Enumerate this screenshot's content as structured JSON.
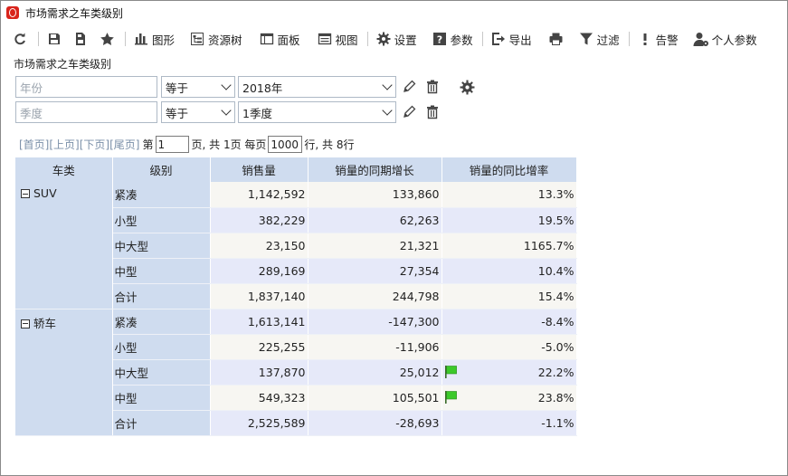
{
  "window": {
    "title": "市场需求之车类级别"
  },
  "toolbar": {
    "chart": "图形",
    "resource_tree": "资源树",
    "panel": "面板",
    "view": "视图",
    "settings": "设置",
    "params": "参数",
    "export": "导出",
    "filter": "过滤",
    "alert": "告警",
    "personal_params": "个人参数"
  },
  "report": {
    "title": "市场需求之车类级别"
  },
  "filters": [
    {
      "field_placeholder": "年份",
      "operator": "等于",
      "value": "2018年"
    },
    {
      "field_placeholder": "季度",
      "operator": "等于",
      "value": "1季度"
    }
  ],
  "pager": {
    "first": "[首页]",
    "prev": "[上页]",
    "next": "[下页]",
    "last": "[尾页]",
    "page_prefix": "第",
    "page": "1",
    "page_suffix": "页, 共 1页 每页",
    "per_page": "1000",
    "total_text": "行, 共 8行"
  },
  "table": {
    "headers": [
      "车类",
      "级别",
      "销售量",
      "销量的同期增长",
      "销量的同比增率"
    ],
    "groups": [
      {
        "category": "SUV",
        "rows": [
          {
            "level": "紧凑",
            "sales": "1,142,592",
            "growth": "133,860",
            "rate": "13.3%",
            "flag": false
          },
          {
            "level": "小型",
            "sales": "382,229",
            "growth": "62,263",
            "rate": "19.5%",
            "flag": false
          },
          {
            "level": "中大型",
            "sales": "23,150",
            "growth": "21,321",
            "rate": "1165.7%",
            "flag": false
          },
          {
            "level": "中型",
            "sales": "289,169",
            "growth": "27,354",
            "rate": "10.4%",
            "flag": false
          },
          {
            "level": "合计",
            "sales": "1,837,140",
            "growth": "244,798",
            "rate": "15.4%",
            "flag": false
          }
        ]
      },
      {
        "category": "轿车",
        "rows": [
          {
            "level": "紧凑",
            "sales": "1,613,141",
            "growth": "-147,300",
            "rate": "-8.4%",
            "flag": false
          },
          {
            "level": "小型",
            "sales": "225,255",
            "growth": "-11,906",
            "rate": "-5.0%",
            "flag": false
          },
          {
            "level": "中大型",
            "sales": "137,870",
            "growth": "25,012",
            "rate": "22.2%",
            "flag": true
          },
          {
            "level": "中型",
            "sales": "549,323",
            "growth": "105,501",
            "rate": "23.8%",
            "flag": true
          },
          {
            "level": "合计",
            "sales": "2,525,589",
            "growth": "-28,693",
            "rate": "-1.1%",
            "flag": false
          }
        ]
      }
    ]
  },
  "colors": {
    "header_bg": "#cfdcef",
    "row_light": "#f7f6f2",
    "row_blue": "#e6e9f9",
    "flag_green": "#3cc92a",
    "app_red": "#d9241b"
  }
}
